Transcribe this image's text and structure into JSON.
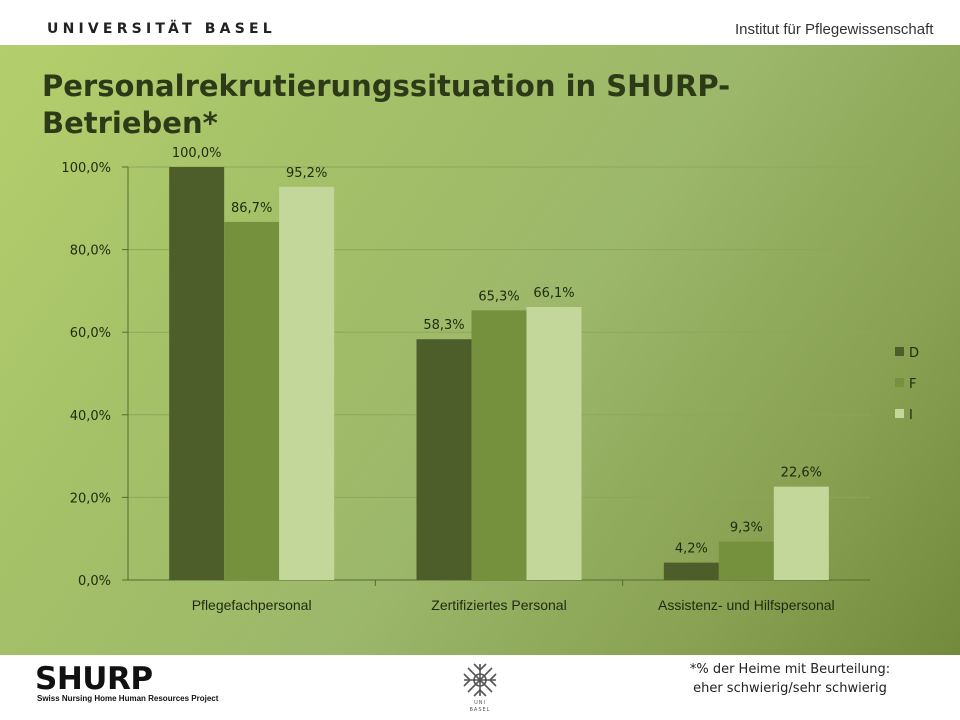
{
  "header": {
    "university": "UNIVERSITÄT BASEL",
    "institute": "Institut für Pflegewissenschaft"
  },
  "slide": {
    "title_line1": "Personalrekrutierungssituation in SHURP-",
    "title_line2": "Betrieben*"
  },
  "footer": {
    "logo": "SHURP",
    "logo_subtitle": "Swiss Nursing Home Human Resources Project",
    "emblem_text": "UNI BASEL",
    "footnote_line1": "*% der Heime mit Beurteilung:",
    "footnote_line2": "eher schwierig/sehr schwierig"
  },
  "colors": {
    "D": "#4e5e2a",
    "F": "#76913e",
    "I": "#c4d79b"
  },
  "chart_data": {
    "type": "bar",
    "categories": [
      "Pflegefachpersonal",
      "Zertifiziertes Personal",
      "Assistenz- und Hilfspersonal"
    ],
    "series": [
      {
        "name": "D",
        "values": [
          100.0,
          58.3,
          4.2
        ],
        "labels": [
          "100,0%",
          "58,3%",
          "4,2%"
        ]
      },
      {
        "name": "F",
        "values": [
          86.7,
          65.3,
          9.3
        ],
        "labels": [
          "86,7%",
          "65,3%",
          "9,3%"
        ]
      },
      {
        "name": "I",
        "values": [
          95.2,
          66.1,
          22.6
        ],
        "labels": [
          "95,2%",
          "66,1%",
          "22,6%"
        ]
      }
    ],
    "y_ticks": [
      0,
      20,
      40,
      60,
      80,
      100
    ],
    "y_tick_labels": [
      "0,0%",
      "20,0%",
      "40,0%",
      "60,0%",
      "80,0%",
      "100,0%"
    ],
    "ylim": [
      0,
      100
    ],
    "xlabel": "",
    "ylabel": "",
    "grid": true,
    "legend_position": "right"
  }
}
